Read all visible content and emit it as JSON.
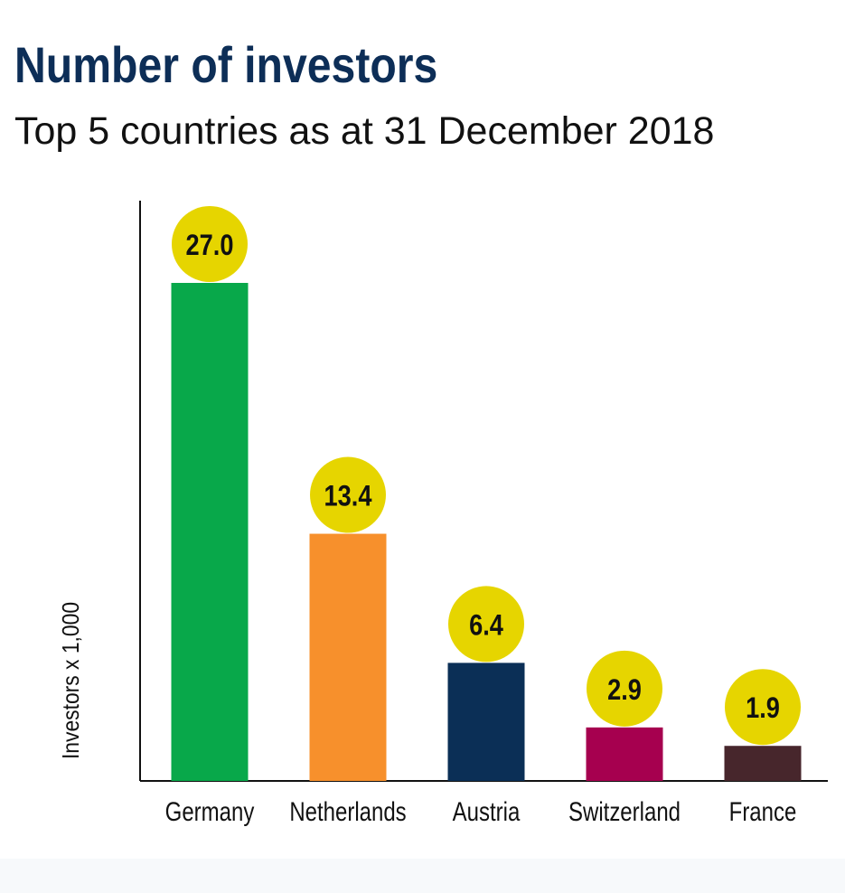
{
  "chart_data": {
    "type": "bar",
    "title": "Number of investors",
    "subtitle": "Top 5 countries as at 31 December 2018",
    "xlabel": "",
    "ylabel": "Investors x 1,000",
    "categories": [
      "Germany",
      "Netherlands",
      "Austria",
      "Switzerland",
      "France"
    ],
    "values": [
      27.0,
      13.4,
      6.4,
      2.9,
      1.9
    ],
    "value_labels": [
      "27.0",
      "13.4",
      "6.4",
      "2.9",
      "1.9"
    ],
    "bar_colors": [
      "#08a84a",
      "#f7902c",
      "#0b2f56",
      "#a6004f",
      "#47262c"
    ],
    "value_badge_color": "#e6d500",
    "ylim": [
      0,
      27.0
    ],
    "grid": false,
    "legend": "none"
  }
}
